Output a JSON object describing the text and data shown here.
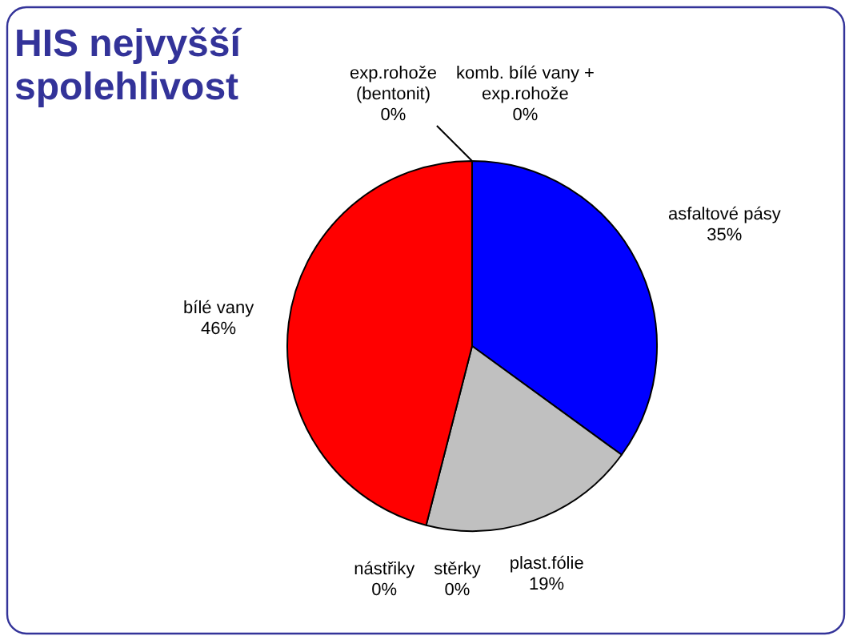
{
  "chart_data": {
    "type": "pie",
    "title": "HIS nejvyšší spolehlivost",
    "categories": [
      "asfaltové pásy",
      "plast.fólie",
      "stěrky",
      "nástřiky",
      "bílé vany",
      "exp.rohože (bentonit)",
      "komb. bílé vany + exp.rohože"
    ],
    "values": [
      35,
      19,
      0,
      0,
      46,
      0,
      0
    ],
    "colors": [
      "#0000ff",
      "#c0c0c0",
      "#808080",
      "#969696",
      "#ff0000",
      "#ffffcc",
      "#ccffff"
    ],
    "value_labels": [
      "35%",
      "19%",
      "0%",
      "0%",
      "46%",
      "0%",
      "0%"
    ],
    "legend": false
  }
}
